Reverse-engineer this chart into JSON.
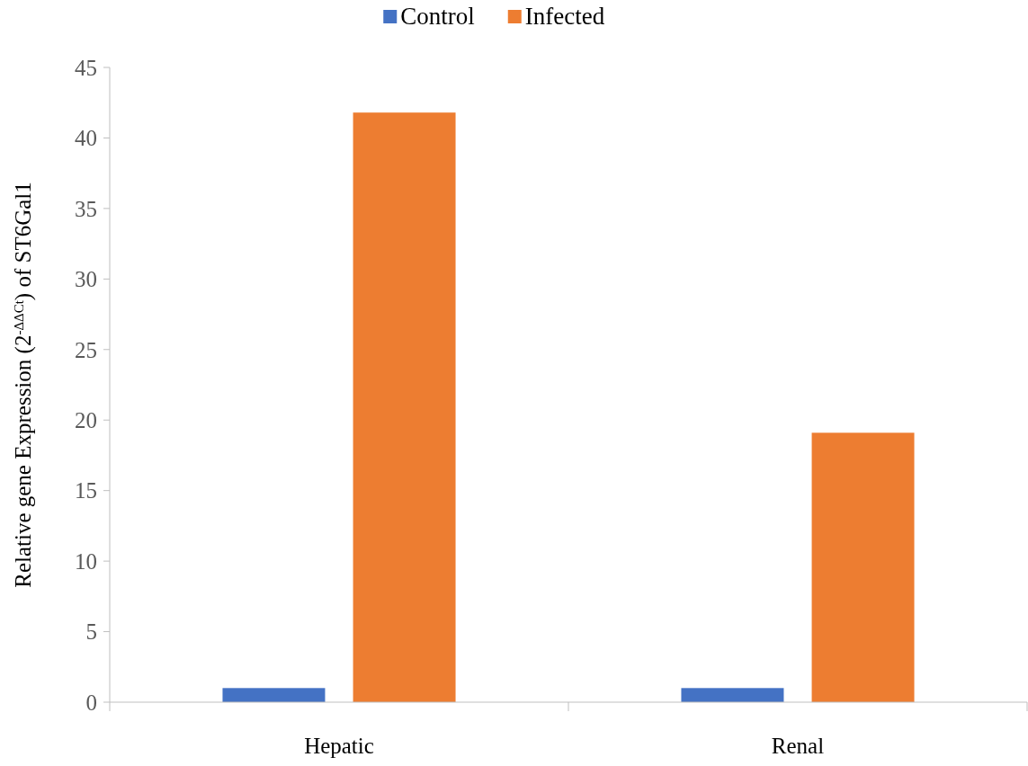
{
  "chart_data": {
    "type": "bar",
    "categories": [
      "Hepatic",
      "Renal"
    ],
    "series": [
      {
        "name": "Control",
        "color": "#4472c4",
        "values": [
          1.0,
          1.0
        ]
      },
      {
        "name": "Infected",
        "color": "#ed7d31",
        "values": [
          41.8,
          19.1
        ]
      }
    ],
    "ylabel": "Relative gene Expression (2$^{-ΔΔCt}$)  of ST6Gal1",
    "ylim": [
      0,
      45
    ],
    "yticks": [
      0,
      5,
      10,
      15,
      20,
      25,
      30,
      35,
      40,
      45
    ],
    "grid": false,
    "legend": "top"
  }
}
